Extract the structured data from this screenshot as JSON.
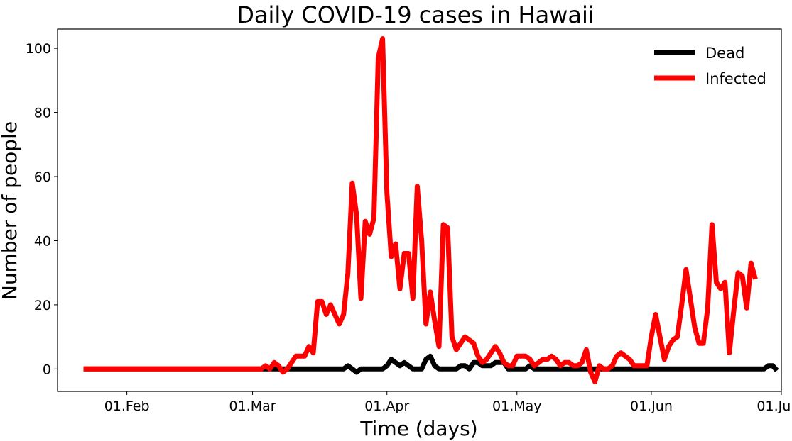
{
  "chart_data": {
    "type": "line",
    "title": "Daily COVID-19 cases in Hawaii",
    "xlabel": "Time (days)",
    "ylabel": "Number of people",
    "x_start_date": "2020-01-22",
    "xlim": [
      "2020-01-16",
      "2020-07-01"
    ],
    "ylim": [
      -7,
      106
    ],
    "yticks": [
      0,
      20,
      40,
      60,
      80,
      100
    ],
    "xticks": [
      {
        "date": "2020-02-01",
        "label": "01.Feb"
      },
      {
        "date": "2020-03-01",
        "label": "01.Mar"
      },
      {
        "date": "2020-04-01",
        "label": "01.Apr"
      },
      {
        "date": "2020-05-01",
        "label": "01.May"
      },
      {
        "date": "2020-06-01",
        "label": "01.Jun"
      },
      {
        "date": "2020-07-01",
        "label": "01.Jul"
      }
    ],
    "grid": false,
    "legend_position": "top-right",
    "series": [
      {
        "name": "Dead",
        "color": "#000000",
        "values": [
          0,
          0,
          0,
          0,
          0,
          0,
          0,
          0,
          0,
          0,
          0,
          0,
          0,
          0,
          0,
          0,
          0,
          0,
          0,
          0,
          0,
          0,
          0,
          0,
          0,
          0,
          0,
          0,
          0,
          0,
          0,
          0,
          0,
          0,
          0,
          0,
          0,
          0,
          0,
          0,
          0,
          0,
          0,
          0,
          0,
          0,
          0,
          0,
          0,
          0,
          0,
          0,
          0,
          0,
          0,
          0,
          0,
          0,
          0,
          0,
          0,
          1,
          0,
          -1,
          0,
          0,
          0,
          0,
          0,
          0,
          1,
          3,
          2,
          1,
          2,
          1,
          0,
          0,
          0,
          3,
          4,
          1,
          0,
          0,
          0,
          0,
          0,
          1,
          1,
          0,
          2,
          2,
          1,
          1,
          1,
          2,
          2,
          2,
          0,
          0,
          0,
          0,
          0,
          1,
          0,
          0,
          0,
          0,
          0,
          0,
          0,
          0,
          0,
          0,
          0,
          0,
          0,
          0,
          0,
          0,
          0,
          0,
          0,
          0,
          0,
          0,
          0,
          0,
          0,
          0,
          0,
          0,
          0,
          0,
          0,
          0,
          0,
          0,
          0,
          0,
          0,
          0,
          0,
          0,
          0,
          0,
          0,
          0,
          0,
          0,
          0,
          0,
          0,
          0,
          0,
          0,
          0,
          0,
          1,
          1,
          -0.5
        ]
      },
      {
        "name": "Infected",
        "color": "#ff0000",
        "values": [
          0,
          0,
          0,
          0,
          0,
          0,
          0,
          0,
          0,
          0,
          0,
          0,
          0,
          0,
          0,
          0,
          0,
          0,
          0,
          0,
          0,
          0,
          0,
          0,
          0,
          0,
          0,
          0,
          0,
          0,
          0,
          0,
          0,
          0,
          0,
          0,
          0,
          0,
          0,
          0,
          0,
          0,
          1,
          0,
          2,
          1,
          -1,
          0,
          2,
          4,
          4,
          4,
          7,
          5,
          21,
          21,
          17,
          20,
          17,
          14,
          17,
          30,
          58,
          48,
          22,
          46,
          42,
          47,
          97,
          103,
          55,
          35,
          39,
          25,
          36,
          36,
          22,
          57,
          40,
          14,
          24,
          15,
          7,
          45,
          44,
          10,
          6,
          8,
          10,
          9,
          8,
          4,
          2,
          3,
          5,
          7,
          5,
          2,
          1,
          1,
          4,
          4,
          4,
          3,
          1,
          2,
          3,
          3,
          4,
          3,
          1,
          2,
          2,
          1,
          1,
          2,
          6,
          -1,
          -4,
          1,
          0,
          0,
          1,
          4,
          5,
          4,
          3,
          1,
          1,
          1,
          1,
          10,
          17,
          10,
          3,
          7,
          9,
          10,
          20,
          31,
          22,
          13,
          8,
          8,
          19,
          45,
          27,
          25,
          27,
          5,
          18,
          30,
          29,
          19,
          33,
          28
        ]
      }
    ]
  }
}
